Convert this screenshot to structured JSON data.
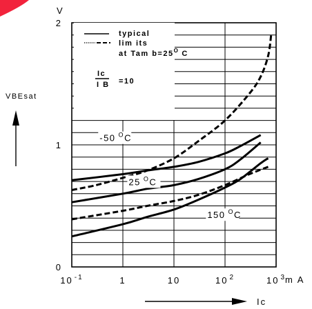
{
  "chart_data": {
    "type": "line",
    "x_scale": "log",
    "xlim": [
      0.1,
      1000
    ],
    "ylim": [
      0,
      2
    ],
    "x_unit": "m A",
    "ylabel": "VBEsat",
    "ylabel_top": "V",
    "xlabel": "Ic",
    "grid": true,
    "x_ticks": [
      {
        "label": "10 -1",
        "base": "10",
        "exp": "-1"
      },
      {
        "label": "1",
        "base": "1",
        "exp": ""
      },
      {
        "label": "10",
        "base": "10",
        "exp": ""
      },
      {
        "label": "10 2",
        "base": "10",
        "exp": "2"
      },
      {
        "label": "10 3",
        "base": "10",
        "exp": "3"
      }
    ],
    "y_ticks": [
      {
        "value": 0,
        "label": "0"
      },
      {
        "value": 1,
        "label": "1"
      },
      {
        "value": 2,
        "label": "2"
      }
    ],
    "legend": {
      "typical": "typical",
      "limits": "lim its",
      "condition": "at Tam b=25",
      "condition_sup": "O",
      "condition_unit": "C",
      "ratio_num": "Ic",
      "ratio_den": "I B",
      "ratio_value": "=10"
    },
    "annotations": [
      {
        "text": "-50",
        "sup": "O",
        "unit": "C",
        "x": 0.35,
        "y": 1.03
      },
      {
        "text": "25",
        "sup": "O",
        "unit": "C",
        "x": 1.3,
        "y": 0.67
      },
      {
        "text": "150",
        "sup": "O",
        "unit": "C",
        "x": 45,
        "y": 0.4
      }
    ],
    "series": [
      {
        "style": "solid",
        "x": [
          0.1,
          1,
          3,
          10,
          30,
          100,
          200,
          500
        ],
        "y": [
          0.71,
          0.76,
          0.79,
          0.82,
          0.86,
          0.93,
          0.99,
          1.08
        ]
      },
      {
        "style": "solid",
        "x": [
          0.1,
          1,
          3,
          10,
          30,
          100,
          200,
          500
        ],
        "y": [
          0.53,
          0.6,
          0.64,
          0.67,
          0.72,
          0.8,
          0.88,
          1.02
        ]
      },
      {
        "style": "solid",
        "x": [
          0.1,
          1,
          3,
          10,
          30,
          100,
          200,
          500,
          700
        ],
        "y": [
          0.25,
          0.35,
          0.41,
          0.47,
          0.55,
          0.65,
          0.72,
          0.85,
          0.89
        ]
      },
      {
        "style": "dashed",
        "x": [
          0.1,
          0.3,
          1,
          3,
          10,
          30,
          100,
          300,
          500,
          700,
          800
        ],
        "y": [
          0.63,
          0.67,
          0.73,
          0.79,
          0.89,
          1.03,
          1.2,
          1.42,
          1.56,
          1.73,
          1.9
        ]
      },
      {
        "style": "dashed",
        "x": [
          0.1,
          1,
          3,
          10,
          30,
          100,
          300,
          700
        ],
        "y": [
          0.39,
          0.46,
          0.5,
          0.54,
          0.59,
          0.67,
          0.76,
          0.82
        ]
      }
    ]
  }
}
